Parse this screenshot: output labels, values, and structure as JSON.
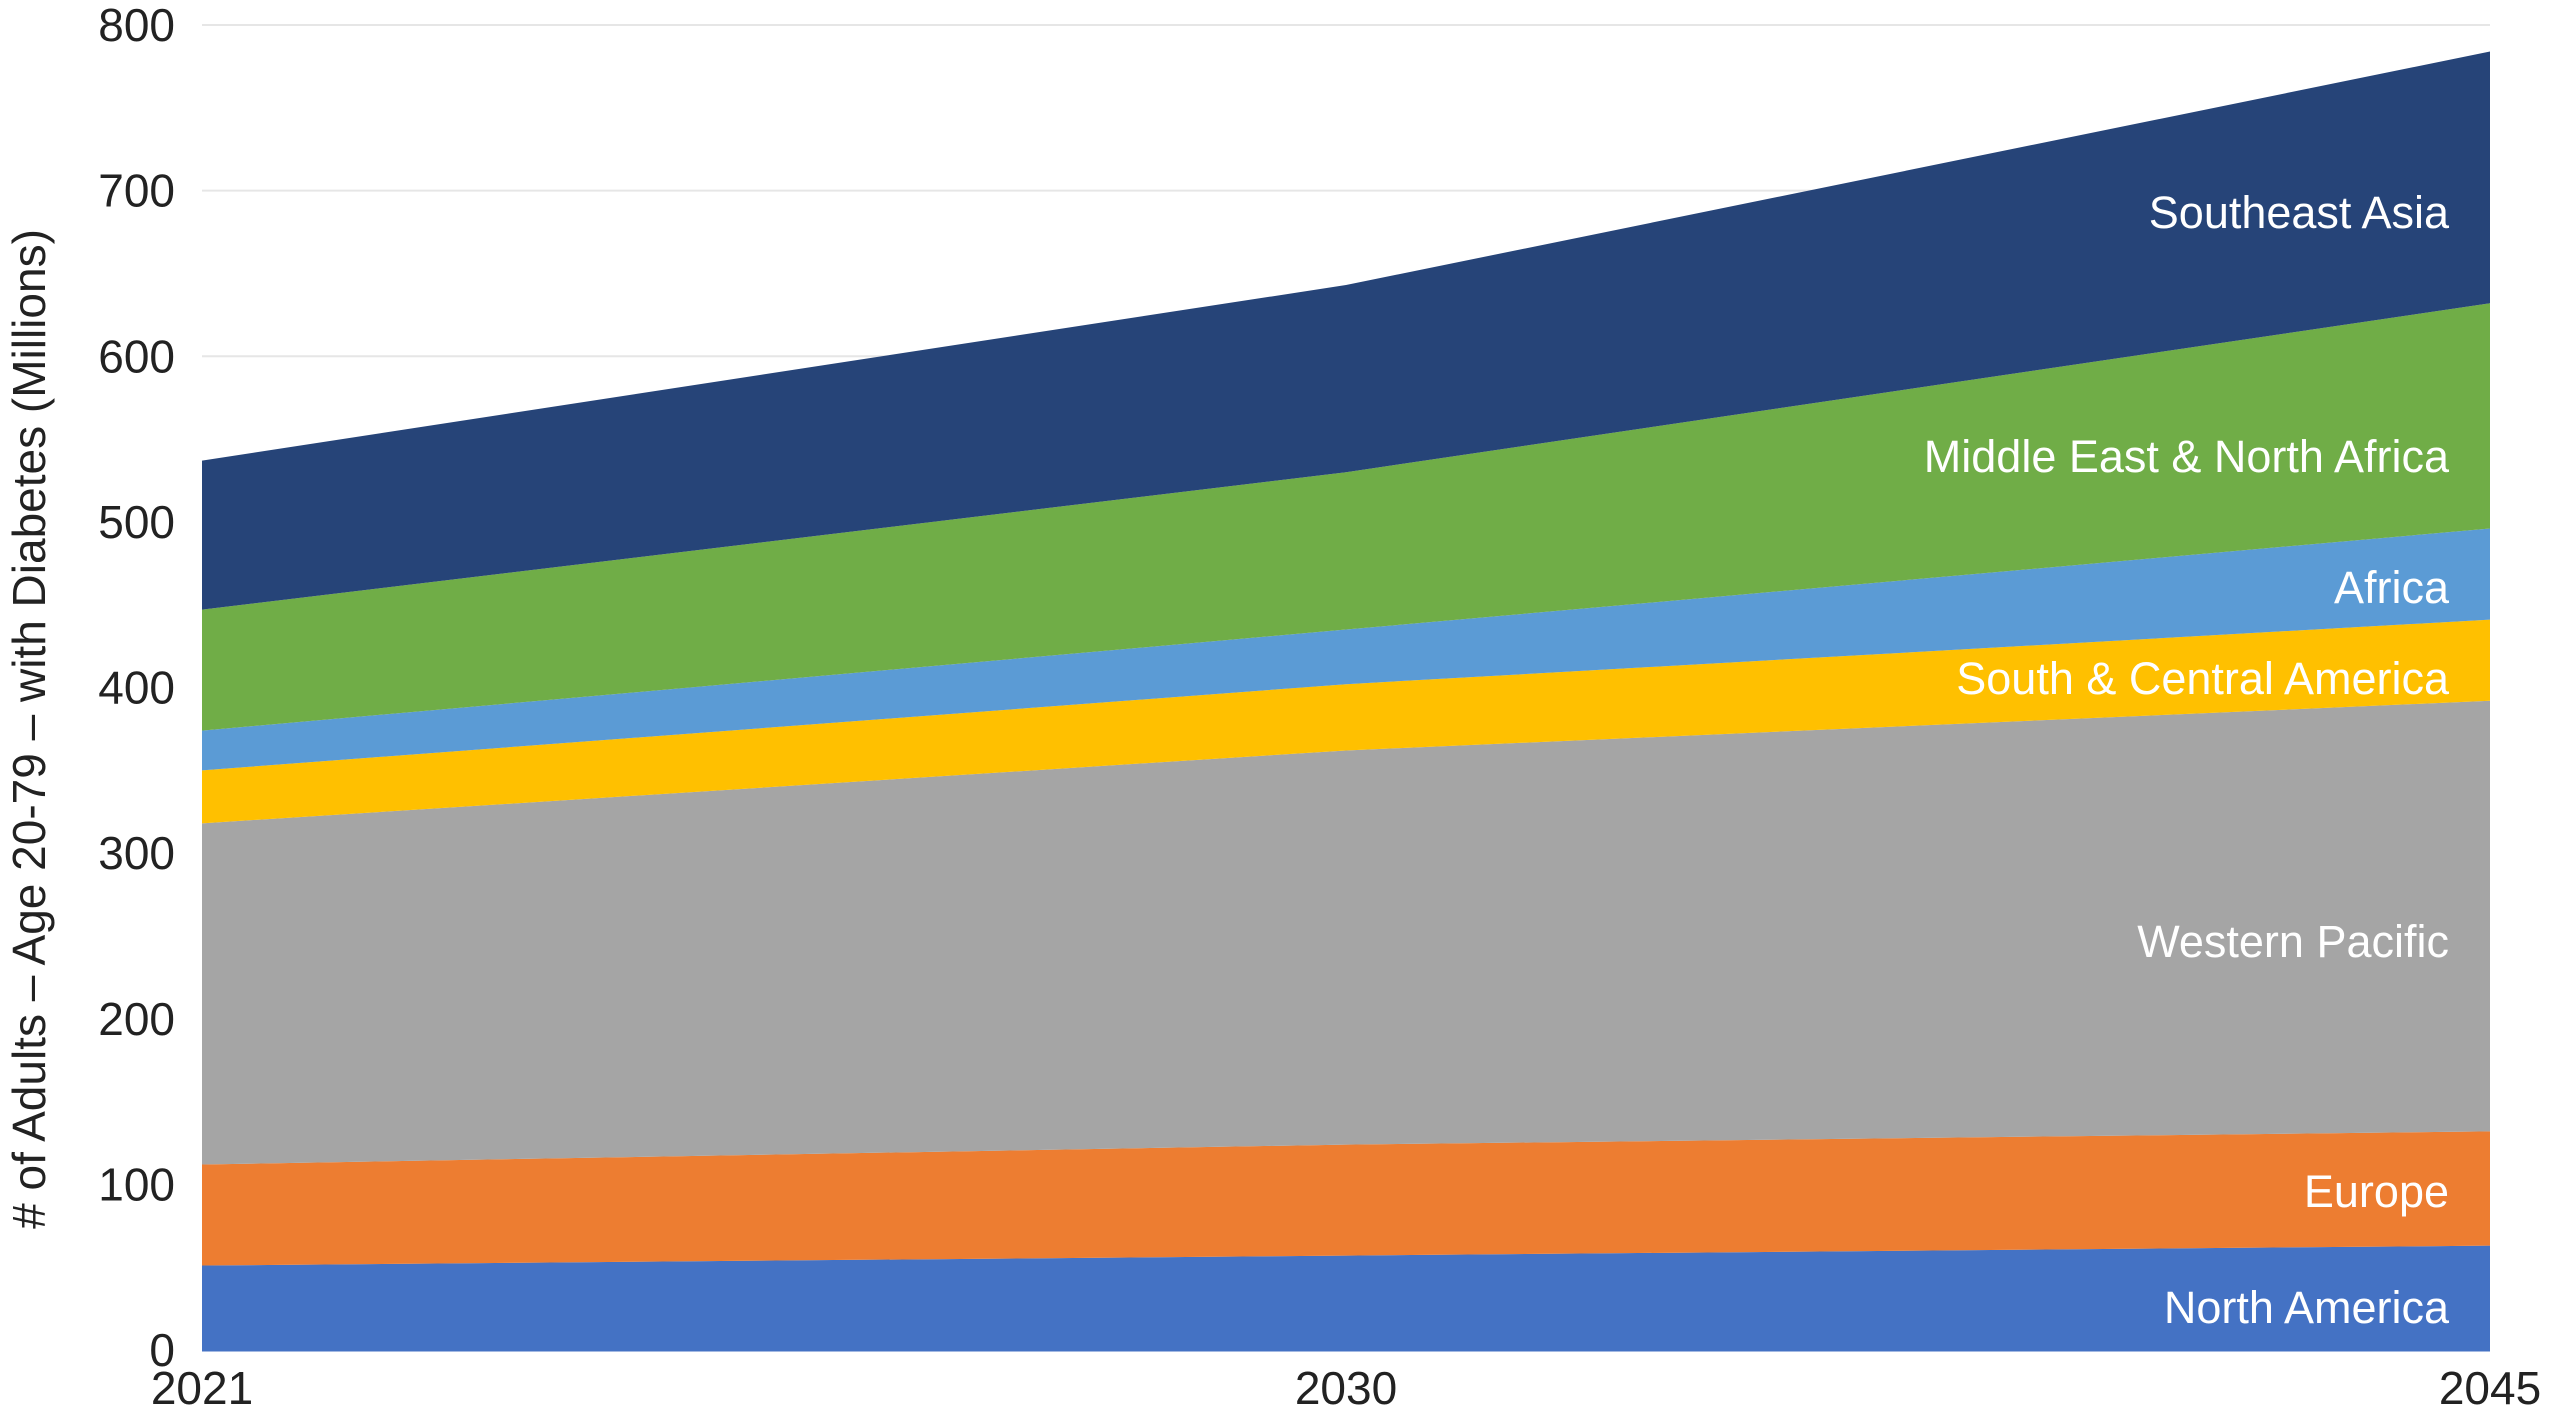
{
  "chart_data": {
    "type": "area",
    "stacked": true,
    "title": "",
    "xlabel": "",
    "ylabel": "# of Adults – Age 20-79 – with Diabetes (Millions)",
    "categories": [
      "2021",
      "2030",
      "2045"
    ],
    "ylim": [
      0,
      800
    ],
    "yticks": [
      0,
      100,
      200,
      300,
      400,
      500,
      600,
      700,
      800
    ],
    "grid": true,
    "legend": "inline labels at right edge",
    "series": [
      {
        "name": "North America",
        "values": [
          51,
          57,
          63
        ],
        "color": "#4472C4"
      },
      {
        "name": "Europe",
        "values": [
          61,
          67,
          69
        ],
        "color": "#ED7D31"
      },
      {
        "name": "Western Pacific",
        "values": [
          206,
          238,
          260
        ],
        "color": "#A5A5A5"
      },
      {
        "name": "South & Central America",
        "values": [
          32,
          40,
          49
        ],
        "color": "#FFC000"
      },
      {
        "name": "Africa",
        "values": [
          24,
          33,
          55
        ],
        "color": "#5B9BD5"
      },
      {
        "name": "Middle East & North Africa",
        "values": [
          73,
          95,
          136
        ],
        "color": "#70AD47"
      },
      {
        "name": "Southeast Asia",
        "values": [
          90,
          113,
          152
        ],
        "color": "#264478"
      }
    ]
  }
}
